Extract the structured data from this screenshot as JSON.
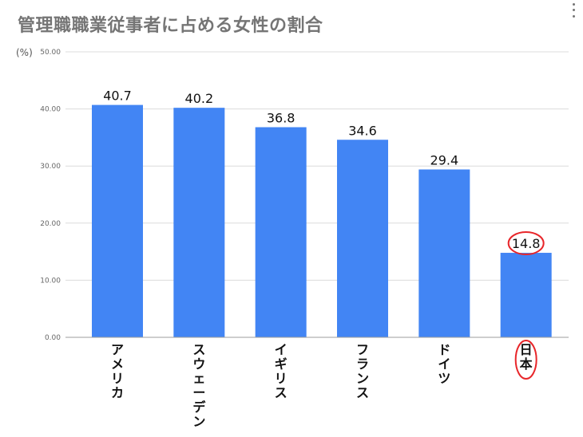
{
  "header": {
    "title": "管理職職業従事者に占める女性の割合"
  },
  "chart_data": {
    "type": "bar",
    "title": "管理職職業従事者に占める女性の割合",
    "ylabel": "(%)",
    "xlabel": "",
    "categories": [
      "アメリカ",
      "スウェーデン",
      "イギリス",
      "フランス",
      "ドイツ",
      "日本"
    ],
    "values": [
      40.7,
      40.2,
      36.8,
      34.6,
      29.4,
      14.8
    ],
    "data_labels": [
      "40.7",
      "40.2",
      "36.8",
      "34.6",
      "29.4",
      "14.8"
    ],
    "ylim": [
      0,
      50
    ],
    "yticks": [
      "0.00",
      "10.00",
      "20.00",
      "30.00",
      "40.00",
      "50.00"
    ],
    "grid": true,
    "legend": "none",
    "bar_color": "#4285F4",
    "highlight": {
      "category": "日本",
      "color": "#E8262A"
    }
  }
}
